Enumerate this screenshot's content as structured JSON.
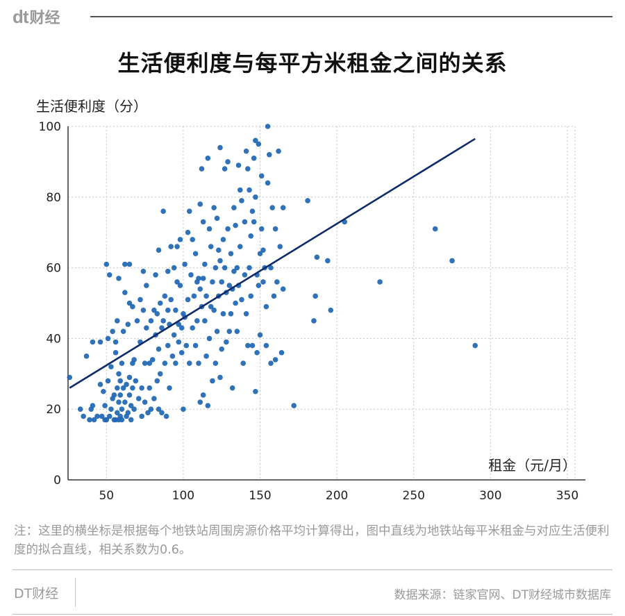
{
  "header": {
    "logo_mark": "dt",
    "logo_text": "财经"
  },
  "title": "生活便利度与每平方米租金之间的关系",
  "chart_data": {
    "type": "scatter",
    "title": "生活便利度与每平方米租金之间的关系",
    "xlabel": "租金（元/月）",
    "ylabel": "生活便利度（分）",
    "xlim": [
      25,
      355
    ],
    "ylim": [
      0,
      100
    ],
    "xticks": [
      50,
      100,
      150,
      200,
      250,
      300,
      350
    ],
    "yticks": [
      0,
      20,
      40,
      60,
      80,
      100
    ],
    "grid": true,
    "point_color": "#1e66b4",
    "line_color": "#0d2a6b",
    "fit_line": [
      [
        26,
        26
      ],
      [
        290,
        96.5
      ]
    ],
    "correlation": 0.6,
    "points": [
      [
        26,
        29
      ],
      [
        33,
        20
      ],
      [
        35,
        18
      ],
      [
        37,
        35
      ],
      [
        39,
        17
      ],
      [
        40,
        20
      ],
      [
        41,
        21
      ],
      [
        41,
        39
      ],
      [
        42,
        17
      ],
      [
        44,
        18
      ],
      [
        46,
        27
      ],
      [
        46,
        39
      ],
      [
        47,
        18
      ],
      [
        48,
        25
      ],
      [
        49,
        17
      ],
      [
        49,
        21
      ],
      [
        50,
        17
      ],
      [
        50,
        61
      ],
      [
        51,
        40
      ],
      [
        51,
        28
      ],
      [
        52,
        18
      ],
      [
        52,
        58
      ],
      [
        53,
        20
      ],
      [
        53,
        32
      ],
      [
        54,
        23
      ],
      [
        54,
        42
      ],
      [
        55,
        17
      ],
      [
        55,
        24
      ],
      [
        56,
        17
      ],
      [
        56,
        36
      ],
      [
        56,
        39
      ],
      [
        57,
        19
      ],
      [
        57,
        26
      ],
      [
        57,
        45
      ],
      [
        58,
        17
      ],
      [
        58,
        22
      ],
      [
        58,
        30
      ],
      [
        58,
        57
      ],
      [
        59,
        18
      ],
      [
        59,
        24
      ],
      [
        59,
        28
      ],
      [
        60,
        17
      ],
      [
        60,
        20
      ],
      [
        60,
        33
      ],
      [
        61,
        26
      ],
      [
        61,
        42
      ],
      [
        62,
        22
      ],
      [
        62,
        53
      ],
      [
        62,
        61
      ],
      [
        63,
        18
      ],
      [
        63,
        27
      ],
      [
        64,
        19
      ],
      [
        64,
        44
      ],
      [
        65,
        24
      ],
      [
        65,
        29
      ],
      [
        65,
        50
      ],
      [
        65,
        61
      ],
      [
        66,
        17
      ],
      [
        66,
        21
      ],
      [
        67,
        26
      ],
      [
        67,
        33
      ],
      [
        67,
        49
      ],
      [
        68,
        20
      ],
      [
        68,
        34
      ],
      [
        69,
        28
      ],
      [
        70,
        45
      ],
      [
        71,
        23
      ],
      [
        72,
        39
      ],
      [
        72,
        51
      ],
      [
        73,
        18
      ],
      [
        73,
        26
      ],
      [
        74,
        48
      ],
      [
        74,
        59
      ],
      [
        75,
        22
      ],
      [
        75,
        33
      ],
      [
        76,
        43
      ],
      [
        76,
        55
      ],
      [
        77,
        19
      ],
      [
        78,
        26
      ],
      [
        78,
        33
      ],
      [
        79,
        20
      ],
      [
        79,
        45
      ],
      [
        80,
        34
      ],
      [
        81,
        23
      ],
      [
        81,
        48
      ],
      [
        82,
        41
      ],
      [
        82,
        58
      ],
      [
        83,
        28
      ],
      [
        83,
        47
      ],
      [
        84,
        20
      ],
      [
        84,
        37
      ],
      [
        84,
        65
      ],
      [
        85,
        50
      ],
      [
        85,
        30
      ],
      [
        86,
        19
      ],
      [
        86,
        43
      ],
      [
        87,
        45
      ],
      [
        87,
        76
      ],
      [
        88,
        52
      ],
      [
        88,
        33
      ],
      [
        89,
        18
      ],
      [
        90,
        48
      ],
      [
        90,
        38
      ],
      [
        90,
        59
      ],
      [
        91,
        26
      ],
      [
        91,
        44
      ],
      [
        92,
        66
      ],
      [
        92,
        51
      ],
      [
        93,
        35
      ],
      [
        94,
        41
      ],
      [
        94,
        60
      ],
      [
        95,
        33
      ],
      [
        95,
        48
      ],
      [
        96,
        66
      ],
      [
        96,
        56
      ],
      [
        97,
        39
      ],
      [
        97,
        44
      ],
      [
        98,
        55
      ],
      [
        98,
        68
      ],
      [
        99,
        36
      ],
      [
        99,
        43
      ],
      [
        100,
        20
      ],
      [
        100,
        47
      ],
      [
        101,
        61
      ],
      [
        101,
        46
      ],
      [
        102,
        38
      ],
      [
        103,
        70
      ],
      [
        103,
        51
      ],
      [
        104,
        76
      ],
      [
        104,
        33
      ],
      [
        105,
        58
      ],
      [
        106,
        43
      ],
      [
        106,
        68
      ],
      [
        107,
        52
      ],
      [
        108,
        38
      ],
      [
        108,
        64
      ],
      [
        109,
        45
      ],
      [
        109,
        56
      ],
      [
        110,
        33
      ],
      [
        110,
        57
      ],
      [
        111,
        22
      ],
      [
        111,
        54
      ],
      [
        111,
        78
      ],
      [
        112,
        88
      ],
      [
        112,
        49
      ],
      [
        113,
        24
      ],
      [
        113,
        57
      ],
      [
        113,
        73
      ],
      [
        114,
        61
      ],
      [
        114,
        45
      ],
      [
        115,
        35
      ],
      [
        115,
        52
      ],
      [
        116,
        91
      ],
      [
        116,
        21
      ],
      [
        117,
        71
      ],
      [
        117,
        40
      ],
      [
        118,
        66
      ],
      [
        118,
        49
      ],
      [
        119,
        28
      ],
      [
        119,
        56
      ],
      [
        120,
        77
      ],
      [
        120,
        48
      ],
      [
        121,
        60
      ],
      [
        121,
        33
      ],
      [
        122,
        74
      ],
      [
        122,
        42
      ],
      [
        123,
        52
      ],
      [
        123,
        65
      ],
      [
        124,
        29
      ],
      [
        124,
        94
      ],
      [
        124,
        62
      ],
      [
        125,
        37
      ],
      [
        125,
        56
      ],
      [
        126,
        68
      ],
      [
        126,
        47
      ],
      [
        127,
        88
      ],
      [
        127,
        60
      ],
      [
        128,
        53
      ],
      [
        128,
        39
      ],
      [
        129,
        90
      ],
      [
        129,
        71
      ],
      [
        130,
        42
      ],
      [
        130,
        55
      ],
      [
        131,
        64
      ],
      [
        131,
        47
      ],
      [
        132,
        26
      ],
      [
        132,
        54
      ],
      [
        133,
        77
      ],
      [
        133,
        59
      ],
      [
        134,
        72
      ],
      [
        134,
        50
      ],
      [
        135,
        42
      ],
      [
        135,
        60
      ],
      [
        136,
        89
      ],
      [
        136,
        55
      ],
      [
        137,
        82
      ],
      [
        137,
        66
      ],
      [
        138,
        79
      ],
      [
        138,
        51
      ],
      [
        139,
        33
      ],
      [
        140,
        58
      ],
      [
        140,
        73
      ],
      [
        141,
        93
      ],
      [
        141,
        47
      ],
      [
        142,
        88
      ],
      [
        142,
        38
      ],
      [
        143,
        82
      ],
      [
        143,
        60
      ],
      [
        144,
        52
      ],
      [
        144,
        69
      ],
      [
        145,
        38
      ],
      [
        145,
        76
      ],
      [
        146,
        91
      ],
      [
        146,
        73
      ],
      [
        147,
        96
      ],
      [
        147,
        80
      ],
      [
        147,
        25
      ],
      [
        148,
        58
      ],
      [
        148,
        36
      ],
      [
        149,
        95
      ],
      [
        149,
        55
      ],
      [
        150,
        64
      ],
      [
        150,
        41
      ],
      [
        151,
        71
      ],
      [
        151,
        86
      ],
      [
        152,
        65
      ],
      [
        152,
        56
      ],
      [
        153,
        60
      ],
      [
        154,
        49
      ],
      [
        154,
        38
      ],
      [
        155,
        100
      ],
      [
        155,
        84
      ],
      [
        156,
        92
      ],
      [
        157,
        60
      ],
      [
        157,
        33
      ],
      [
        158,
        77
      ],
      [
        159,
        52
      ],
      [
        160,
        71
      ],
      [
        160,
        34
      ],
      [
        161,
        56
      ],
      [
        162,
        93
      ],
      [
        163,
        66
      ],
      [
        164,
        36
      ],
      [
        165,
        54
      ],
      [
        165,
        77
      ],
      [
        172,
        21
      ],
      [
        181,
        79
      ],
      [
        185,
        45
      ],
      [
        186,
        52
      ],
      [
        187,
        63
      ],
      [
        194,
        62
      ],
      [
        196,
        48
      ],
      [
        205,
        73
      ],
      [
        228,
        56
      ],
      [
        264,
        71
      ],
      [
        275,
        62
      ],
      [
        290,
        38
      ]
    ]
  },
  "note": "注：这里的横坐标是根据每个地铁站周围房源价格平均计算得出，图中直线为地铁站每平米租金与对应生活便利度的拟合直线，相关系数为0.6。",
  "footer": {
    "brand": "DT财经",
    "source": "数据来源：链家官网、DT财经城市数据库"
  }
}
